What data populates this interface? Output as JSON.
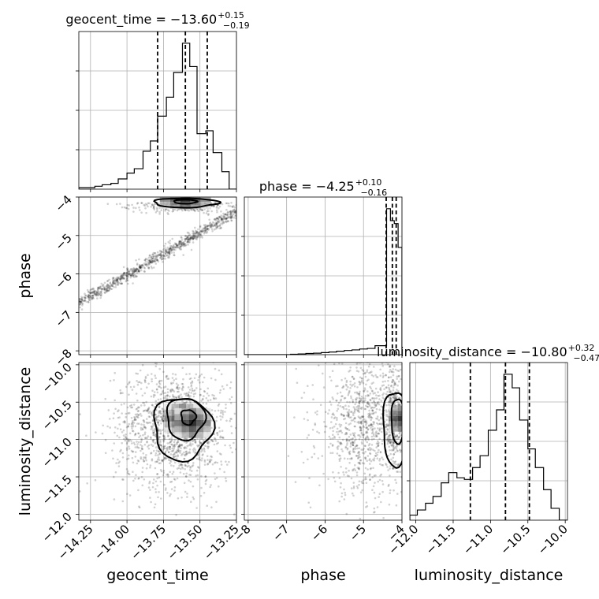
{
  "chart_data": {
    "type": "corner",
    "parameters": [
      "geocent_time",
      "phase",
      "luminosity_distance"
    ],
    "titles": [
      {
        "text": "geocent_time = −13.60",
        "plus": "+0.15",
        "minus": "−0.19"
      },
      {
        "text": "phase = −4.25",
        "plus": "+0.10",
        "minus": "−0.16"
      },
      {
        "text": "luminosity_distance = −10.80",
        "plus": "+0.32",
        "minus": "−0.47"
      }
    ],
    "axis_labels": {
      "geocent_time": "geocent_time",
      "phase": "phase",
      "luminosity_distance": "luminosity_distance"
    },
    "ranges": {
      "geocent_time": [
        -14.33,
        -13.25
      ],
      "phase": [
        -8.1,
        -4.0
      ],
      "luminosity_distance": [
        -12.08,
        -9.97
      ]
    },
    "ticks": {
      "geocent_time": [
        {
          "value": -14.25,
          "label": "−14.25"
        },
        {
          "value": -14.0,
          "label": "−14.00"
        },
        {
          "value": -13.75,
          "label": "−13.75"
        },
        {
          "value": -13.5,
          "label": "−13.50"
        },
        {
          "value": -13.25,
          "label": "−13.25"
        }
      ],
      "phase": [
        {
          "value": -8,
          "label": "−8"
        },
        {
          "value": -7,
          "label": "−7"
        },
        {
          "value": -6,
          "label": "−6"
        },
        {
          "value": -5,
          "label": "−5"
        },
        {
          "value": -4,
          "label": "−4"
        }
      ],
      "luminosity_distance": [
        {
          "value": -12.0,
          "label": "−12.0"
        },
        {
          "value": -11.5,
          "label": "−11.5"
        },
        {
          "value": -11.0,
          "label": "−11.0"
        },
        {
          "value": -10.5,
          "label": "−10.5"
        },
        {
          "value": -10.0,
          "label": "−10.0"
        }
      ]
    },
    "quantiles": {
      "geocent_time": [
        -13.79,
        -13.6,
        -13.45
      ],
      "phase": [
        -4.41,
        -4.25,
        -4.15
      ],
      "luminosity_distance": [
        -11.27,
        -10.8,
        -10.48
      ]
    },
    "histograms": {
      "geocent_time": {
        "edges": [
          -14.33,
          -14.28,
          -14.22,
          -14.17,
          -14.11,
          -14.06,
          -14.0,
          -13.95,
          -13.89,
          -13.84,
          -13.79,
          -13.73,
          -13.68,
          -13.62,
          -13.57,
          -13.52,
          -13.46,
          -13.41,
          -13.35,
          -13.3,
          -13.25
        ],
        "counts": [
          1,
          1,
          2,
          3,
          4,
          7,
          11,
          14,
          26,
          33,
          50,
          63,
          80,
          100,
          84,
          38,
          40,
          25,
          12,
          0
        ]
      },
      "phase": {
        "edges": [
          -8.1,
          -7.9,
          -7.7,
          -7.5,
          -7.3,
          -7.1,
          -6.9,
          -6.7,
          -6.5,
          -6.3,
          -6.1,
          -5.9,
          -5.7,
          -5.5,
          -5.3,
          -5.1,
          -4.9,
          -4.7,
          -4.5,
          -4.4,
          -4.3,
          -4.2,
          -4.1,
          -4.0
        ],
        "counts": [
          0,
          0,
          0,
          0,
          0,
          0,
          0.3,
          0.5,
          0.8,
          1,
          1.4,
          1.8,
          2.3,
          2.8,
          3.2,
          3.8,
          4.2,
          6,
          6,
          98,
          90,
          88,
          72
        ]
      },
      "luminosity_distance": {
        "edges": [
          -12.08,
          -11.98,
          -11.87,
          -11.77,
          -11.66,
          -11.56,
          -11.45,
          -11.35,
          -11.24,
          -11.14,
          -11.03,
          -10.92,
          -10.82,
          -10.71,
          -10.61,
          -10.5,
          -10.4,
          -10.29,
          -10.19,
          -10.08,
          -9.97
        ],
        "counts": [
          3,
          6,
          10,
          14,
          22,
          28,
          25,
          24,
          31,
          38,
          53,
          65,
          86,
          78,
          59,
          42,
          31,
          18,
          7,
          0
        ]
      }
    }
  }
}
